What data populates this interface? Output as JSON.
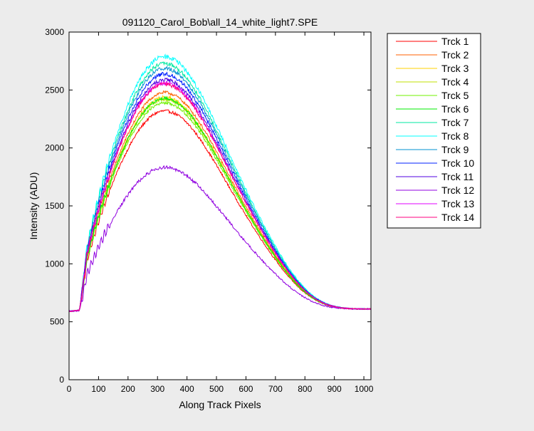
{
  "chart_data": {
    "type": "line",
    "title": "091120_Carol_Bob\\all_14_white_light7.SPE",
    "xlabel": "Along Track Pixels",
    "ylabel": "Intensity (ADU)",
    "xlim": [
      0,
      1024
    ],
    "ylim": [
      0,
      3000
    ],
    "xticks": [
      0,
      100,
      200,
      300,
      400,
      500,
      600,
      700,
      800,
      900,
      1000
    ],
    "yticks": [
      0,
      500,
      1000,
      1500,
      2000,
      2500,
      3000
    ],
    "grid": false,
    "legend_position": "outside-right",
    "series": [
      {
        "name": "Trck 1",
        "color": "#ff0000",
        "peak": 2330,
        "noise": 12
      },
      {
        "name": "Trck 2",
        "color": "#ff6000",
        "peak": 2490,
        "noise": 12
      },
      {
        "name": "Trck 3",
        "color": "#ffd000",
        "peak": 2450,
        "noise": 12
      },
      {
        "name": "Trck 4",
        "color": "#c0e000",
        "peak": 2430,
        "noise": 12
      },
      {
        "name": "Trck 5",
        "color": "#70f000",
        "peak": 2400,
        "noise": 12
      },
      {
        "name": "Trck 6",
        "color": "#00ee00",
        "peak": 2440,
        "noise": 12
      },
      {
        "name": "Trck 7",
        "color": "#00e8a0",
        "peak": 2740,
        "noise": 14
      },
      {
        "name": "Trck 8",
        "color": "#00ffff",
        "peak": 2800,
        "noise": 16
      },
      {
        "name": "Trck 9",
        "color": "#0090d0",
        "peak": 2700,
        "noise": 14
      },
      {
        "name": "Trck 10",
        "color": "#0020ff",
        "peak": 2650,
        "noise": 14
      },
      {
        "name": "Trck 11",
        "color": "#5000e0",
        "peak": 2600,
        "noise": 14
      },
      {
        "name": "Trck 12",
        "color": "#9000e0",
        "peak": 1840,
        "noise": 18
      },
      {
        "name": "Trck 13",
        "color": "#e000ff",
        "peak": 2570,
        "noise": 14
      },
      {
        "name": "Trck 14",
        "color": "#ff0080",
        "peak": 2560,
        "noise": 14
      }
    ]
  }
}
